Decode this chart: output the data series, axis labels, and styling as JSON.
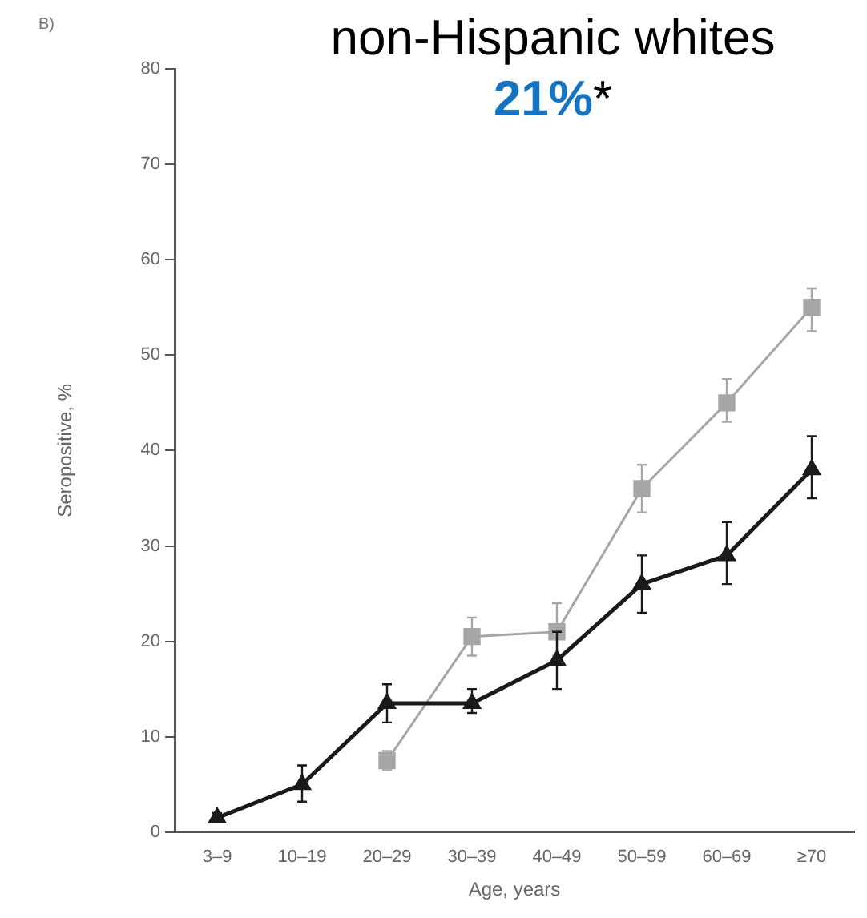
{
  "chart_data": {
    "type": "line",
    "title": "non-Hispanic whites",
    "subtitle": "21%",
    "annotations": [
      "B)",
      "*"
    ],
    "xlabel": "Age, years",
    "ylabel": "Seropositive, %",
    "categories": [
      "3–9",
      "10–19",
      "20–29",
      "30–39",
      "40–49",
      "50–59",
      "60–69",
      "≥70"
    ],
    "series": [
      {
        "color": "#1a1a1a",
        "marker": "triangle",
        "values": [
          1.5,
          5,
          13.5,
          13.5,
          18,
          26,
          29,
          38
        ],
        "errors": [
          [
            1,
            2
          ],
          [
            3.2,
            7
          ],
          [
            11.5,
            15.5
          ],
          [
            12.5,
            15
          ],
          [
            15,
            21
          ],
          [
            23,
            29
          ],
          [
            26,
            32.5
          ],
          [
            35,
            41.5
          ]
        ]
      },
      {
        "color": "#a6a6a6",
        "marker": "square",
        "values": [
          null,
          null,
          7.5,
          20.5,
          21,
          36,
          45,
          55
        ],
        "errors": [
          null,
          null,
          [
            6.5,
            8.5
          ],
          [
            18.5,
            22.5
          ],
          [
            18.5,
            24
          ],
          [
            33.5,
            38.5
          ],
          [
            43,
            47.5
          ],
          [
            52.5,
            57
          ]
        ]
      }
    ],
    "ylim": [
      0,
      80
    ],
    "yticks": [
      0,
      10,
      20,
      30,
      40,
      50,
      60,
      70,
      80
    ],
    "grid": false,
    "legend": false
  }
}
